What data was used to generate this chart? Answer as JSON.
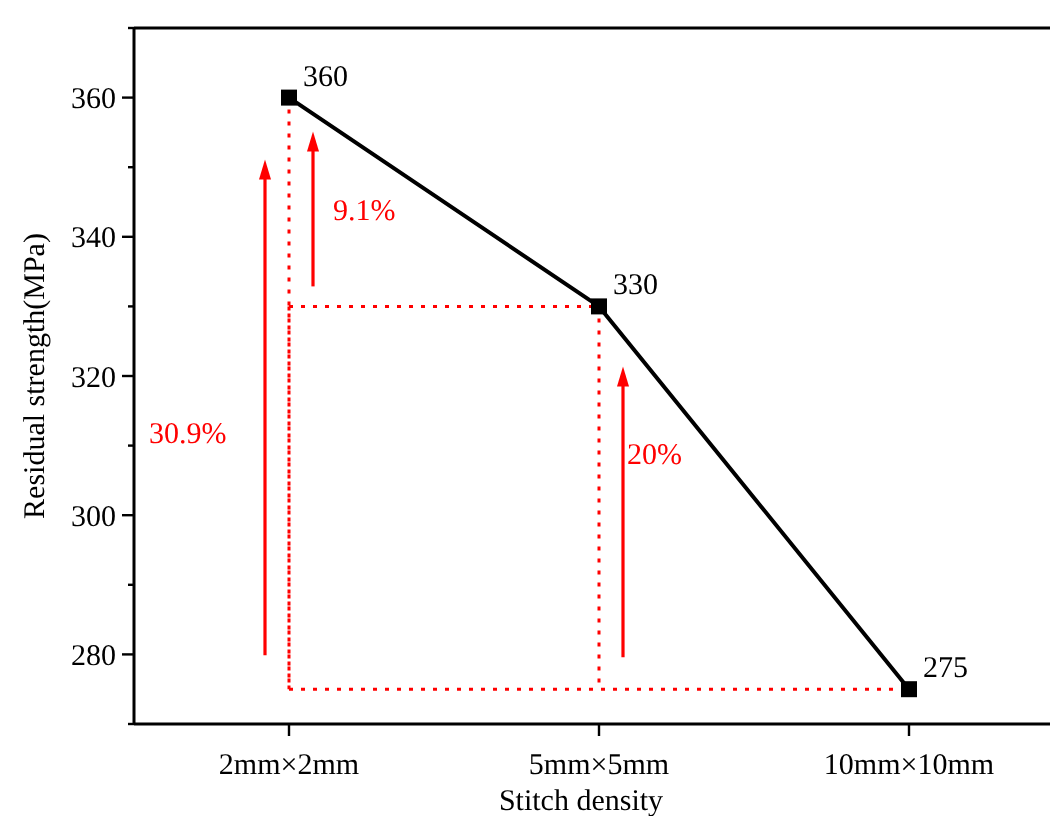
{
  "chart_data": {
    "type": "line",
    "xlabel": "Stitch density",
    "ylabel": "Residual strength(MPa)",
    "categories": [
      "2mm×2mm",
      "5mm×5mm",
      "10mm×10mm"
    ],
    "series": [
      {
        "color": "#000000",
        "values": [
          360,
          330,
          275
        ]
      }
    ],
    "ylim": [
      270,
      370
    ],
    "yticks": [
      {
        "value": 270,
        "label": null
      },
      280,
      {
        "value": 290,
        "label": null
      },
      300,
      {
        "value": 310,
        "label": null
      },
      320,
      {
        "value": 330,
        "label": null
      },
      340,
      {
        "value": 350,
        "label": null
      },
      360,
      {
        "value": 370,
        "label": null
      }
    ],
    "marker": "square",
    "line_style": "solid",
    "data_labels": true,
    "annotations": [
      "9.1%",
      "30.9%",
      "20%"
    ]
  }
}
